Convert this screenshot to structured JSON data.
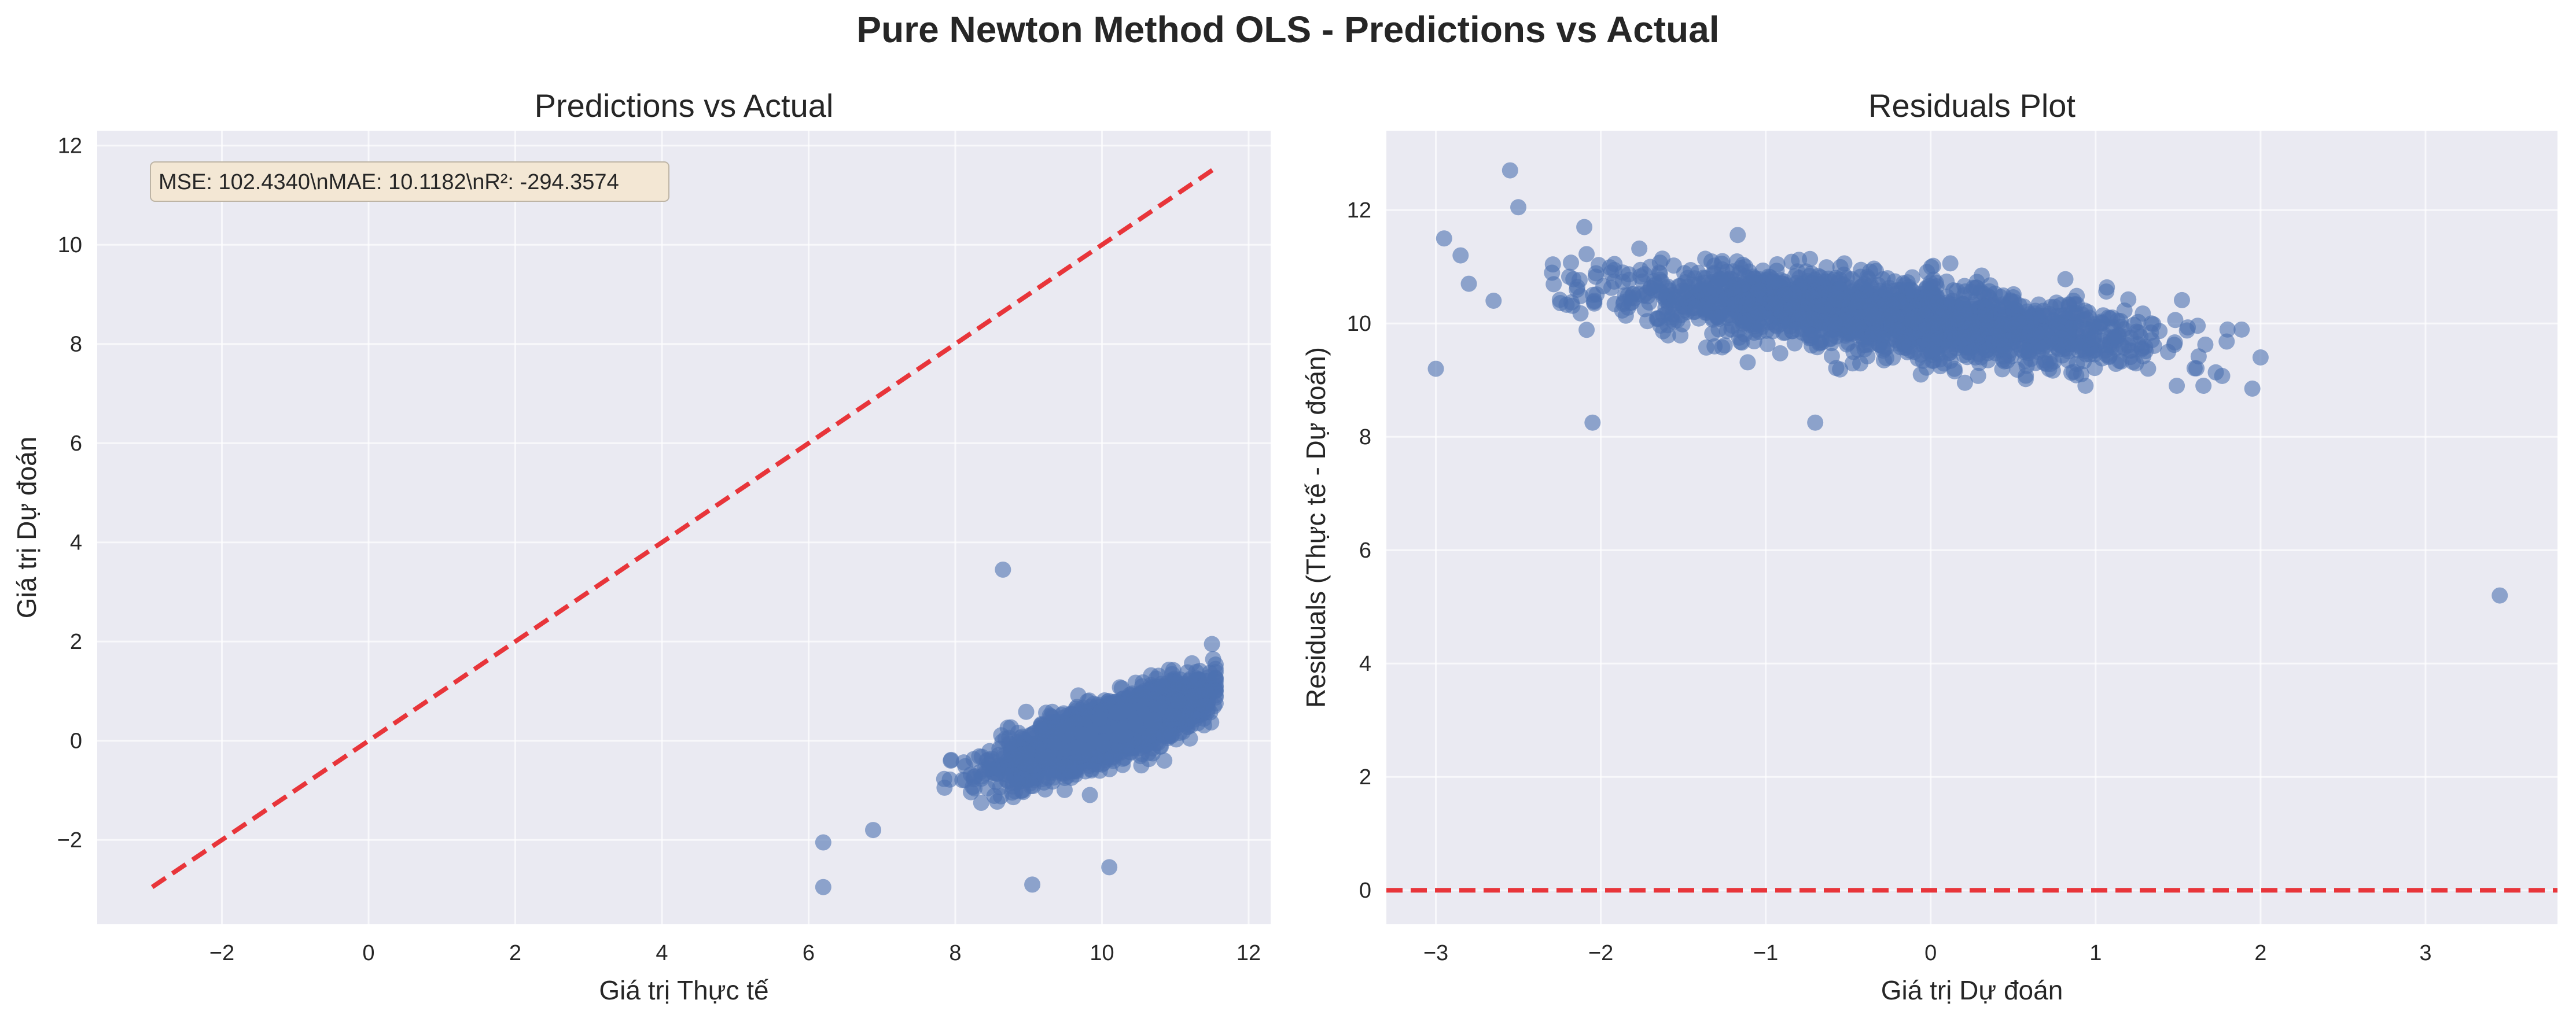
{
  "figure": {
    "title": "Pure Newton Method OLS - Predictions vs Actual"
  },
  "colors": {
    "plot_background": "#EAEAF2",
    "grid": "#FFFFFF",
    "points": "#4C72B0",
    "reference_line": "#E8353A",
    "text": "#262626",
    "annotation_box": "#F3E7D4",
    "annotation_border": "#BDB4A5"
  },
  "chart_data": [
    {
      "type": "scatter",
      "title": "Predictions vs Actual",
      "xlabel": "Giá trị Thực tế",
      "ylabel": "Giá trị Dự đoán",
      "xlim": [
        -3.7,
        12.3
      ],
      "ylim": [
        -3.7,
        12.3
      ],
      "xticks": [
        -2,
        0,
        2,
        4,
        6,
        8,
        10,
        12
      ],
      "xtick_labels": [
        "−2",
        "0",
        "2",
        "4",
        "6",
        "8",
        "10",
        "12"
      ],
      "yticks": [
        -2,
        0,
        2,
        4,
        6,
        8,
        10,
        12
      ],
      "ytick_labels": [
        "−2",
        "0",
        "2",
        "4",
        "6",
        "8",
        "10",
        "12"
      ],
      "grid": true,
      "annotation": "MSE: 102.4340\\nMAE: 10.1182\\nR²: -294.3574",
      "reference_line": {
        "style": "dashed",
        "from": [
          -2.95,
          -2.95
        ],
        "to": [
          11.55,
          11.55
        ]
      },
      "cluster": {
        "x_range": [
          7.6,
          11.6
        ],
        "y_range": [
          -2.4,
          1.9
        ],
        "trend": "positive",
        "approx_points": 2000
      },
      "outliers": [
        [
          8.65,
          3.45
        ],
        [
          6.2,
          -2.05
        ],
        [
          6.2,
          -2.95
        ],
        [
          10.1,
          -2.55
        ],
        [
          9.05,
          -2.9
        ],
        [
          6.88,
          -1.8
        ],
        [
          11.5,
          1.95
        ],
        [
          10.85,
          -0.4
        ]
      ]
    },
    {
      "type": "scatter",
      "title": "Residuals Plot",
      "xlabel": "Giá trị Dự đoán",
      "ylabel": "Residuals (Thực tế - Dự đoán)",
      "xlim": [
        -3.3,
        3.8
      ],
      "ylim": [
        -0.6,
        13.4
      ],
      "xticks": [
        -3,
        -2,
        -1,
        0,
        1,
        2,
        3
      ],
      "xtick_labels": [
        "−3",
        "−2",
        "−1",
        "0",
        "1",
        "2",
        "3"
      ],
      "yticks": [
        0,
        2,
        4,
        6,
        8,
        10,
        12
      ],
      "ytick_labels": [
        "0",
        "2",
        "4",
        "6",
        "8",
        "10",
        "12"
      ],
      "grid": true,
      "reference_line": {
        "style": "dashed",
        "y": 0
      },
      "cluster": {
        "x_range": [
          -2.3,
          1.95
        ],
        "y_range": [
          8.9,
          11.6
        ],
        "trend": "negative",
        "approx_points": 2000
      },
      "outliers": [
        [
          -2.55,
          12.7
        ],
        [
          -2.5,
          12.05
        ],
        [
          -2.95,
          11.5
        ],
        [
          -2.85,
          11.2
        ],
        [
          -2.8,
          10.7
        ],
        [
          -2.65,
          10.4
        ],
        [
          -3.0,
          9.2
        ],
        [
          3.45,
          5.2
        ],
        [
          -2.05,
          8.25
        ],
        [
          -0.7,
          8.25
        ],
        [
          2.0,
          9.4
        ],
        [
          1.95,
          8.85
        ],
        [
          -2.1,
          11.7
        ]
      ]
    }
  ]
}
